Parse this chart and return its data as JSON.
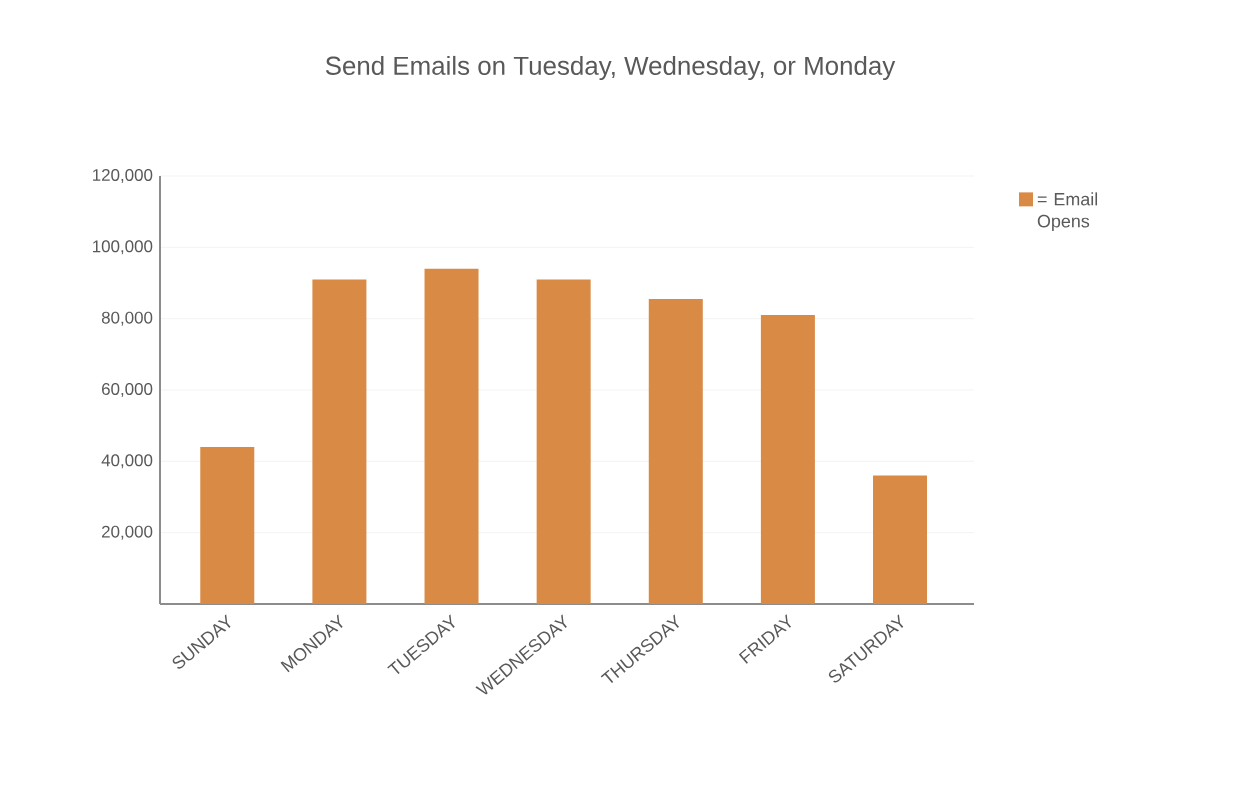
{
  "chart_data": {
    "type": "bar",
    "title": "Send Emails on Tuesday, Wednesday, or Monday",
    "categories": [
      "SUNDAY",
      "MONDAY",
      "TUESDAY",
      "WEDNESDAY",
      "THURSDAY",
      "FRIDAY",
      "SATURDAY"
    ],
    "series": [
      {
        "name": "= Email Opens",
        "color": "#d98a45",
        "values": [
          44000,
          91000,
          94000,
          91000,
          85500,
          81000,
          36000
        ]
      }
    ],
    "ylim": [
      0,
      120000
    ],
    "yticks": [
      {
        "value": 20000,
        "label": "20,000"
      },
      {
        "value": 40000,
        "label": "40,000"
      },
      {
        "value": 60000,
        "label": "60,000"
      },
      {
        "value": 80000,
        "label": "80,000"
      },
      {
        "value": 100000,
        "label": "100,000"
      },
      {
        "value": 120000,
        "label": "120,000"
      }
    ],
    "grid": "y",
    "legend": "top right"
  }
}
